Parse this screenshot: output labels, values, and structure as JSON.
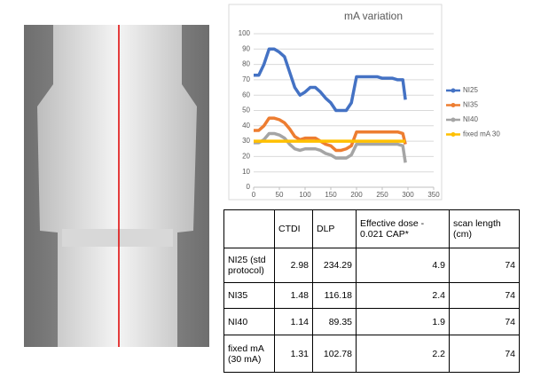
{
  "chart_data": {
    "type": "line",
    "title": "mA variation",
    "x": [
      0,
      10,
      20,
      30,
      40,
      50,
      60,
      70,
      80,
      90,
      100,
      110,
      120,
      130,
      140,
      150,
      160,
      170,
      180,
      190,
      200,
      210,
      220,
      230,
      240,
      250,
      260,
      270,
      280,
      290,
      295
    ],
    "series": [
      {
        "name": "NI25",
        "color": "#4472c4",
        "values": [
          73,
          73,
          80,
          90,
          90,
          88,
          85,
          75,
          65,
          60,
          62,
          65,
          65,
          62,
          58,
          55,
          50,
          50,
          50,
          55,
          72,
          72,
          72,
          72,
          72,
          71,
          71,
          71,
          70,
          70,
          57
        ]
      },
      {
        "name": "NI35",
        "color": "#ed7d31",
        "values": [
          37,
          37,
          40,
          45,
          45,
          44,
          42,
          38,
          33,
          31,
          32,
          32,
          32,
          30,
          28,
          27,
          24,
          24,
          25,
          27,
          36,
          36,
          36,
          36,
          36,
          36,
          36,
          36,
          36,
          35,
          28
        ]
      },
      {
        "name": "NI40",
        "color": "#a5a5a5",
        "values": [
          29,
          29,
          31,
          35,
          35,
          34,
          32,
          28,
          25,
          24,
          25,
          25,
          25,
          24,
          22,
          21,
          19,
          19,
          19,
          21,
          28,
          28,
          28,
          28,
          28,
          28,
          28,
          28,
          28,
          27,
          16
        ]
      },
      {
        "name": "fixed mA 30",
        "color": "#ffc000",
        "values": [
          30,
          30,
          30,
          30,
          30,
          30,
          30,
          30,
          30,
          30,
          30,
          30,
          30,
          30,
          30,
          30,
          30,
          30,
          30,
          30,
          30,
          30,
          30,
          30,
          30,
          30,
          30,
          30,
          30,
          30,
          30
        ]
      }
    ],
    "xlim": [
      0,
      350
    ],
    "xticks": [
      0,
      50,
      100,
      150,
      200,
      250,
      300,
      350
    ],
    "ylim": [
      0,
      100
    ],
    "yticks": [
      0,
      10,
      20,
      30,
      40,
      50,
      60,
      70,
      80,
      90,
      100
    ],
    "grid": true,
    "legend": "right"
  },
  "table": {
    "header": [
      "CTDI",
      "DLP",
      "Effective dose - 0.021 CAP*",
      "scan length (cm)"
    ],
    "rows": [
      [
        "NI25 (std protocol)",
        2.98,
        234.29,
        4.9,
        74
      ],
      [
        "NI35",
        1.48,
        116.18,
        2.4,
        74
      ],
      [
        "NI40",
        1.14,
        89.35,
        1.9,
        74
      ],
      [
        "fixed mA (30 mA)",
        1.31,
        102.78,
        2.2,
        74
      ]
    ]
  }
}
